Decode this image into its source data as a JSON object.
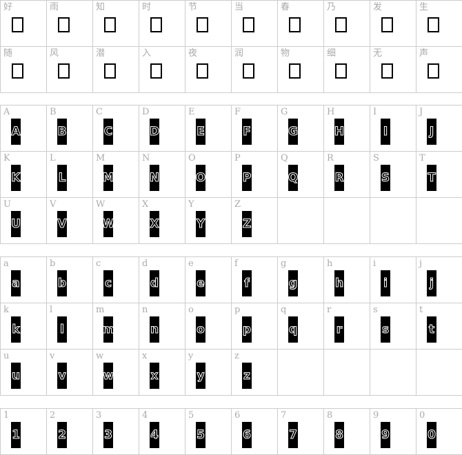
{
  "chinese": [
    "好",
    "雨",
    "知",
    "时",
    "节",
    "当",
    "春",
    "乃",
    "发",
    "生",
    "随",
    "风",
    "潜",
    "入",
    "夜",
    "润",
    "物",
    "细",
    "无",
    "声"
  ],
  "uppercase": [
    "A",
    "B",
    "C",
    "D",
    "E",
    "F",
    "G",
    "H",
    "I",
    "J",
    "K",
    "L",
    "M",
    "N",
    "O",
    "P",
    "Q",
    "R",
    "S",
    "T",
    "U",
    "V",
    "W",
    "X",
    "Y",
    "Z"
  ],
  "lowercase": [
    "a",
    "b",
    "c",
    "d",
    "e",
    "f",
    "g",
    "h",
    "i",
    "j",
    "k",
    "l",
    "m",
    "n",
    "o",
    "p",
    "q",
    "r",
    "s",
    "t",
    "u",
    "v",
    "w",
    "x",
    "y",
    "z"
  ],
  "digits": [
    "1",
    "2",
    "3",
    "4",
    "5",
    "6",
    "7",
    "8",
    "9",
    "0"
  ]
}
